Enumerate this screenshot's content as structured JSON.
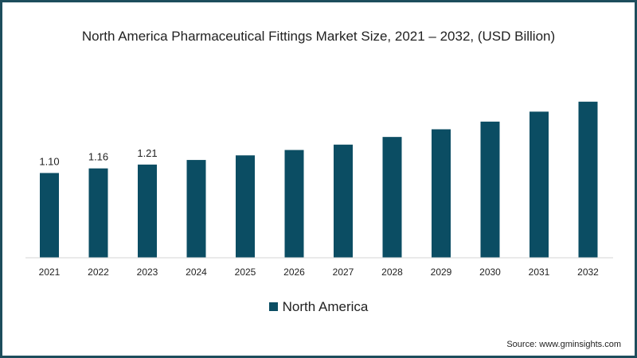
{
  "chart_data": {
    "type": "bar",
    "title": "North America Pharmaceutical Fittings Market Size, 2021 – 2032, (USD Billion)",
    "categories": [
      "2021",
      "2022",
      "2023",
      "2024",
      "2025",
      "2026",
      "2027",
      "2028",
      "2029",
      "2030",
      "2031",
      "2032"
    ],
    "series": [
      {
        "name": "North America",
        "values": [
          1.1,
          1.16,
          1.21,
          1.27,
          1.33,
          1.4,
          1.47,
          1.57,
          1.67,
          1.77,
          1.9,
          2.03
        ],
        "color": "#0b4d63"
      }
    ],
    "data_labels": [
      "1.10",
      "1.16",
      "1.21"
    ],
    "xlabel": "",
    "ylabel": "",
    "ylim": [
      0,
      2.1
    ],
    "grid": false,
    "legend": "bottom-center"
  },
  "source": "Source: www.gminsights.com"
}
